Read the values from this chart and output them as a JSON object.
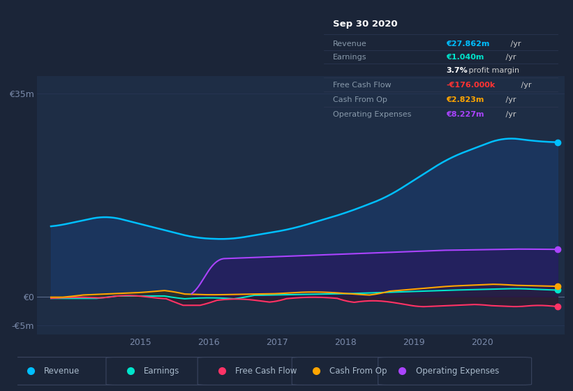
{
  "bg_color": "#1b2538",
  "plot_bg_color": "#1e2d45",
  "grid_color": "#263452",
  "title_box": {
    "date": "Sep 30 2020",
    "rows": [
      {
        "label": "Revenue",
        "value": "€27.862m",
        "suffix": " /yr",
        "value_color": "#00bfff"
      },
      {
        "label": "Earnings",
        "value": "€1.040m",
        "suffix": " /yr",
        "value_color": "#00e5cc"
      },
      {
        "label": "",
        "value": "3.7%",
        "suffix": " profit margin",
        "value_color": "#ffffff"
      },
      {
        "label": "Free Cash Flow",
        "value": "-€176.000k",
        "suffix": " /yr",
        "value_color": "#ff3333"
      },
      {
        "label": "Cash From Op",
        "value": "€2.823m",
        "suffix": " /yr",
        "value_color": "#ffa500"
      },
      {
        "label": "Operating Expenses",
        "value": "€8.227m",
        "suffix": " /yr",
        "value_color": "#aa44ff"
      }
    ]
  },
  "ylim": [
    -6.5,
    38
  ],
  "ytick_pos": 35,
  "ytick_pos_label": "€35m",
  "ytick_zero": 0,
  "ytick_zero_label": "€0",
  "ytick_neg": -5,
  "ytick_neg_label": "-€5m",
  "xlim": [
    2013.5,
    2021.2
  ],
  "xticks": [
    2015,
    2016,
    2017,
    2018,
    2019,
    2020
  ],
  "revenue_color": "#00bfff",
  "revenue_fill": "#1a3a6a",
  "earnings_color": "#00e5cc",
  "earnings_fill": "#003a30",
  "fcf_color": "#ff3366",
  "fcf_fill": "#3a1020",
  "cashop_color": "#ffa500",
  "cashop_fill": "#3a2800",
  "opex_color": "#aa44ff",
  "opex_fill": "#2a1260",
  "legend_bg": "#1b2538",
  "legend_border": "#3a4560"
}
